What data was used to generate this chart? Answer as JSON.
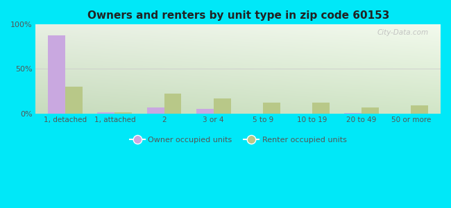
{
  "title": "Owners and renters by unit type in zip code 60153",
  "categories": [
    "1, detached",
    "1, attached",
    "2",
    "3 or 4",
    "5 to 9",
    "10 to 19",
    "20 to 49",
    "50 or more"
  ],
  "owner_values": [
    88,
    1.5,
    7,
    5,
    0,
    0,
    0.5,
    0
  ],
  "renter_values": [
    30,
    1,
    22,
    17,
    12,
    12,
    7,
    9
  ],
  "owner_color": "#c9a8e0",
  "renter_color": "#b8c888",
  "background_outer": "#00e8f8",
  "ylim": [
    0,
    100
  ],
  "yticks": [
    0,
    50,
    100
  ],
  "ytick_labels": [
    "0%",
    "50%",
    "100%"
  ],
  "bar_width": 0.35,
  "legend_owner": "Owner occupied units",
  "legend_renter": "Renter occupied units",
  "watermark": "City-Data.com"
}
